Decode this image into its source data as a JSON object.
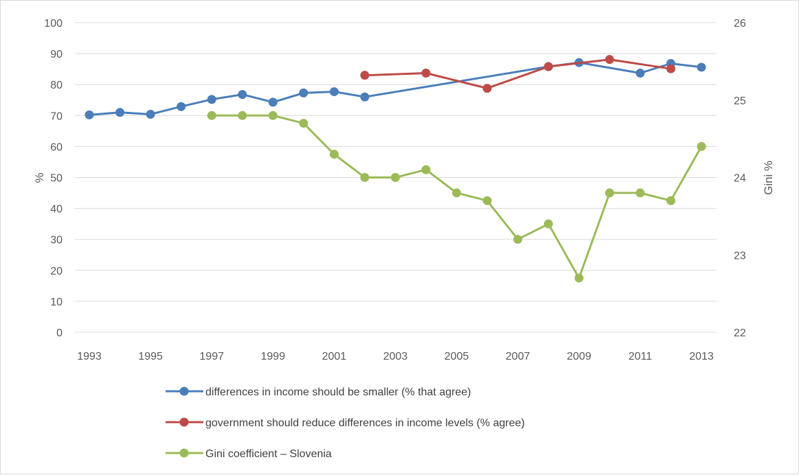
{
  "chart_data": {
    "type": "line",
    "title": "",
    "x_ticks": [
      "1993",
      "1995",
      "1997",
      "1999",
      "2001",
      "2003",
      "2005",
      "2007",
      "2009",
      "2011",
      "2013"
    ],
    "x_range": [
      1993,
      2013
    ],
    "y_left": {
      "label": "%",
      "range": [
        0,
        100
      ],
      "ticks": [
        "0",
        "10",
        "20",
        "30",
        "40",
        "50",
        "60",
        "70",
        "80",
        "90",
        "100"
      ]
    },
    "y_right": {
      "label": "Gini %",
      "range": [
        22,
        26
      ],
      "ticks": [
        "22",
        "23",
        "24",
        "25",
        "26"
      ]
    },
    "grid": "horizontal",
    "legend_position": "bottom",
    "series": [
      {
        "name": "differences in income should be smaller (% that agree)",
        "axis": "left",
        "color": "#4a7ebb",
        "points": [
          [
            1993,
            70.2
          ],
          [
            1994,
            71.0
          ],
          [
            1995,
            70.4
          ],
          [
            1996,
            72.9
          ],
          [
            1997,
            75.2
          ],
          [
            1998,
            76.8
          ],
          [
            1999,
            74.3
          ],
          [
            2000,
            77.3
          ],
          [
            2001,
            77.7
          ],
          [
            2002,
            76.0
          ],
          [
            2008,
            85.8
          ],
          [
            2009,
            87.1
          ],
          [
            2011,
            83.7
          ],
          [
            2012,
            86.8
          ],
          [
            2013,
            85.6
          ]
        ]
      },
      {
        "name": "government should reduce differences in income levels (% agree)",
        "axis": "left",
        "color": "#be4b48",
        "points": [
          [
            2002,
            83.0
          ],
          [
            2004,
            83.7
          ],
          [
            2006,
            78.8
          ],
          [
            2008,
            85.8
          ],
          [
            2010,
            88.1
          ],
          [
            2012,
            85.1
          ]
        ]
      },
      {
        "name": "Gini coefficient – Slovenia",
        "axis": "right",
        "color": "#9bbb59",
        "points": [
          [
            1997,
            24.8
          ],
          [
            1998,
            24.8
          ],
          [
            1999,
            24.8
          ],
          [
            2000,
            24.7
          ],
          [
            2001,
            24.3
          ],
          [
            2002,
            24.0
          ],
          [
            2003,
            24.0
          ],
          [
            2004,
            24.1
          ],
          [
            2005,
            23.8
          ],
          [
            2006,
            23.7
          ],
          [
            2007,
            23.2
          ],
          [
            2008,
            23.4
          ],
          [
            2009,
            22.7
          ],
          [
            2010,
            23.8
          ],
          [
            2011,
            23.8
          ],
          [
            2012,
            23.7
          ],
          [
            2013,
            24.4
          ]
        ]
      }
    ]
  }
}
